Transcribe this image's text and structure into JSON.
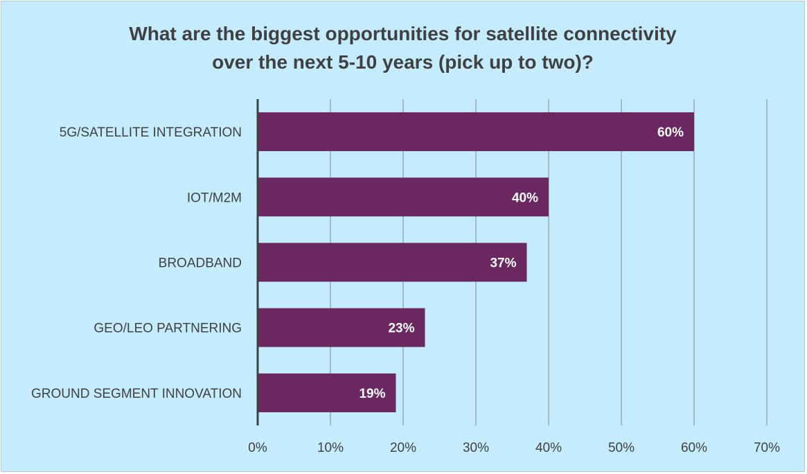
{
  "chart_data": {
    "type": "bar",
    "orientation": "horizontal",
    "title_lines": [
      "What are the biggest opportunities for satellite connectivity",
      "over the next 5-10 years (pick up to two)?"
    ],
    "categories": [
      "5G/SATELLITE INTEGRATION",
      "IOT/M2M",
      "BROADBAND",
      "GEO/LEO PARTNERING",
      "GROUND SEGMENT INNOVATION"
    ],
    "values": [
      60,
      40,
      37,
      23,
      19
    ],
    "data_labels": [
      "60%",
      "40%",
      "37%",
      "23%",
      "19%"
    ],
    "xlim": [
      0,
      70
    ],
    "x_ticks": [
      0,
      10,
      20,
      30,
      40,
      50,
      60,
      70
    ],
    "x_tick_labels": [
      "0%",
      "10%",
      "20%",
      "30%",
      "40%",
      "50%",
      "60%",
      "70%"
    ],
    "grid": "vertical",
    "legend": "none",
    "colors": {
      "bar": "#6b2760",
      "background": "#c5ecfc",
      "gridline": "#8a9aa3",
      "axis": "#404040"
    }
  }
}
